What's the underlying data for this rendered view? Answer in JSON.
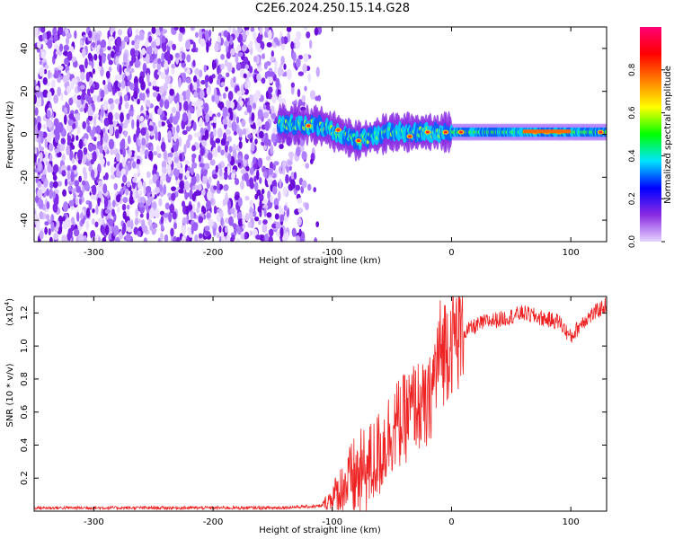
{
  "title": "C2E6.2024.250.15.14.G28",
  "chart_data": [
    {
      "type": "heatmap",
      "xlabel": "Height of straight line (km)",
      "ylabel": "Frequency (Hz)",
      "xlim": [
        -350,
        130
      ],
      "ylim": [
        -50,
        50
      ],
      "xticks": [
        -300,
        -200,
        -100,
        0,
        100
      ],
      "yticks": [
        -40,
        -20,
        0,
        20,
        40
      ],
      "colorbar": {
        "label": "Normalized spectral amplitude",
        "range": [
          0,
          1
        ],
        "ticks": [
          "0.0",
          "0.2",
          "0.4",
          "0.6",
          "0.8"
        ],
        "colors": [
          "#e6d5ff",
          "#8a2be2",
          "#0000ff",
          "#00e5ff",
          "#00ff00",
          "#ffff00",
          "#ff8000",
          "#ff0000",
          "#ff0077"
        ]
      },
      "regions": [
        {
          "x_from": -350,
          "x_to": -110,
          "description": "scattered noise across all frequencies"
        },
        {
          "x_from": -145,
          "x_to": 130,
          "center_hz": [
            [
              -145,
              5
            ],
            [
              -110,
              4
            ],
            [
              -80,
              -3
            ],
            [
              -50,
              1
            ],
            [
              -20,
              1
            ],
            [
              0,
              1
            ],
            [
              60,
              1
            ],
            [
              130,
              1
            ]
          ]
        }
      ]
    },
    {
      "type": "line",
      "xlabel": "Height of straight line (km)",
      "ylabel": "SNR (10 * v/v)",
      "yscale_label": "(x10",
      "yscale_exp": "4",
      "xlim": [
        -350,
        130
      ],
      "ylim": [
        0,
        1.3
      ],
      "xticks": [
        -300,
        -200,
        -100,
        0,
        100
      ],
      "yticks": [
        "0.2",
        "0.4",
        "0.6",
        "0.8",
        "1.0",
        "1.2"
      ],
      "color": "#ee2222",
      "series": [
        {
          "x": [
            -350,
            -300,
            -250,
            -200,
            -150,
            -110,
            -100,
            -90,
            -80,
            -70,
            -60,
            -50,
            -40,
            -30,
            -20,
            -15,
            -10,
            0,
            10,
            20,
            30,
            40,
            50,
            60,
            70,
            80,
            90,
            100,
            110,
            120,
            130
          ],
          "y": [
            0.02,
            0.02,
            0.02,
            0.02,
            0.02,
            0.03,
            0.08,
            0.15,
            0.2,
            0.25,
            0.35,
            0.5,
            0.55,
            0.65,
            0.6,
            0.8,
            0.95,
            1.05,
            1.08,
            1.12,
            1.15,
            1.16,
            1.18,
            1.2,
            1.18,
            1.16,
            1.15,
            1.05,
            1.15,
            1.2,
            1.25
          ]
        }
      ]
    }
  ]
}
